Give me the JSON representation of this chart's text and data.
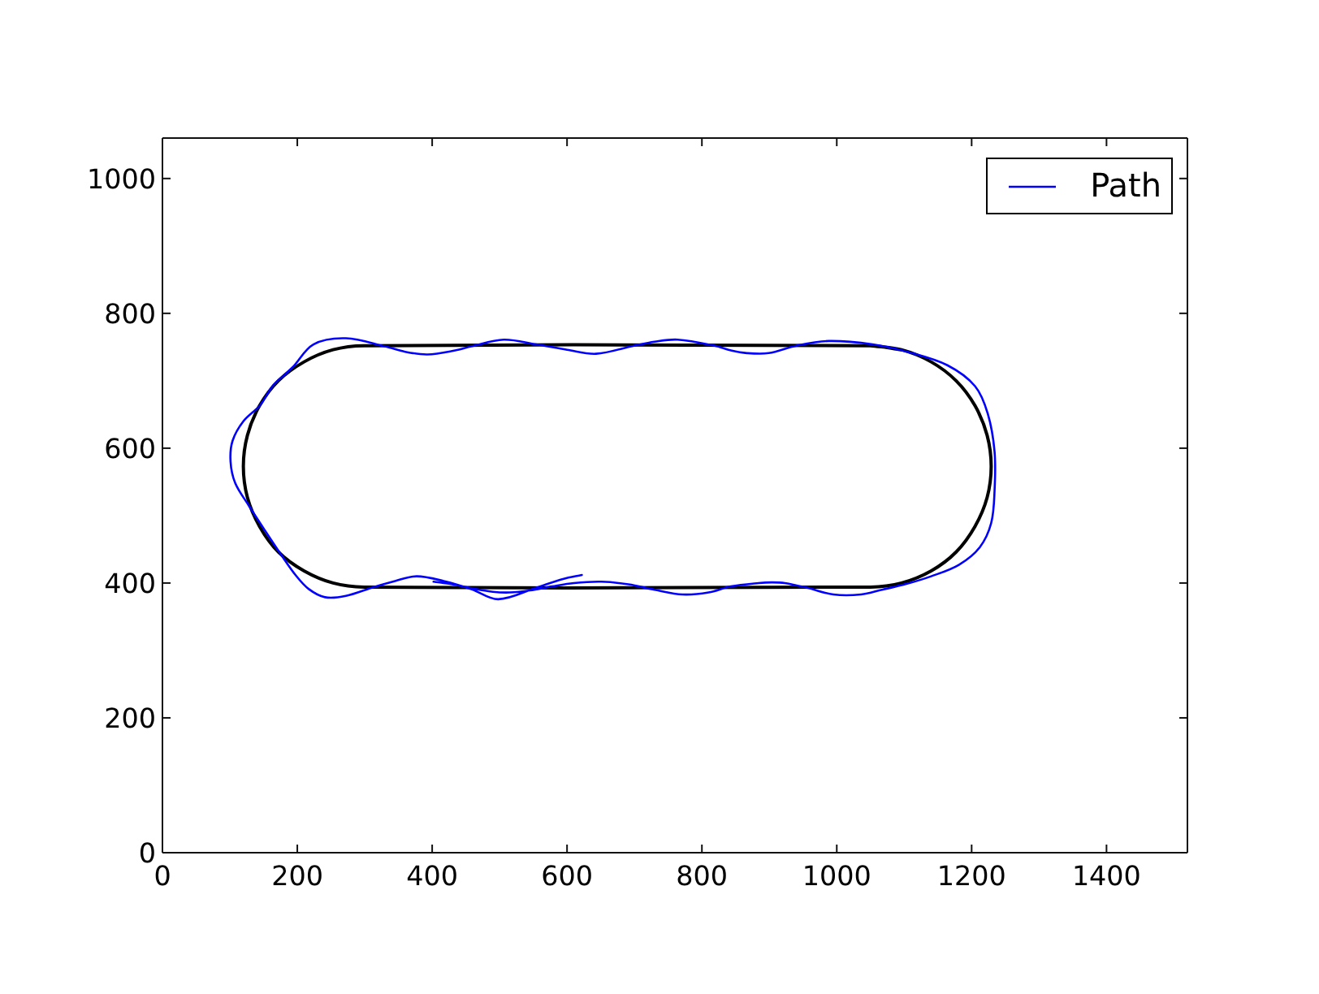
{
  "chart_data": {
    "type": "line",
    "series": [
      {
        "color": "#000000",
        "x": [
          1096,
          1050,
          299,
          253,
          210,
          172,
          144,
          126,
          120,
          126,
          144,
          172,
          210,
          253,
          299,
          1050,
          1096,
          1140,
          1177,
          1205,
          1223,
          1229,
          1223,
          1205,
          1177,
          1140,
          1096,
          1050
        ],
        "values": [
          746,
          752,
          752,
          746,
          728,
          700,
          663,
          619,
          573,
          527,
          484,
          446,
          418,
          400,
          394,
          394,
          400,
          418,
          446,
          484,
          527,
          573,
          619,
          663,
          700,
          728,
          746,
          752
        ]
      },
      {
        "name": "Path",
        "color": "#0000ff",
        "x": [
          402,
          430,
          460,
          490,
          515,
          545,
          578,
          610,
          651,
          691,
          730,
          771,
          810,
          843,
          884,
          904,
          923,
          956,
          995,
          1036,
          1067,
          1101,
          1140,
          1181,
          1212,
          1229,
          1234,
          1234,
          1224,
          1205,
          1164,
          1108,
          1053,
          988,
          940,
          899,
          867,
          843,
          819,
          764,
          730,
          699,
          643,
          600,
          554,
          506,
          458,
          434,
          393,
          360,
          330,
          272,
          224,
          193,
          164,
          145,
          120,
          104,
          101,
          108,
          128,
          152,
          176,
          198,
          217,
          241,
          272,
          313,
          345,
          377,
          417,
          458,
          498,
          554,
          594,
          622
        ],
        "values": [
          402,
          398,
          392,
          387,
          386,
          389,
          395,
          400,
          402,
          398,
          390,
          383,
          386,
          395,
          400,
          401,
          400,
          393,
          383,
          383,
          390,
          398,
          410,
          427,
          453,
          489,
          537,
          595,
          651,
          692,
          723,
          742,
          754,
          759,
          752,
          741,
          741,
          745,
          752,
          761,
          758,
          752,
          740,
          746,
          754,
          761,
          751,
          745,
          739,
          743,
          751,
          763,
          754,
          720,
          693,
          664,
          640,
          611,
          580,
          548,
          515,
          478,
          442,
          411,
          391,
          379,
          381,
          394,
          403,
          410,
          403,
          391,
          376,
          393,
          406,
          412
        ]
      }
    ],
    "xlim": [
      0,
      1520
    ],
    "ylim": [
      0,
      1060
    ],
    "xticks": [
      0,
      200,
      400,
      600,
      800,
      1000,
      1200,
      1400
    ],
    "yticks": [
      0,
      200,
      400,
      600,
      800,
      1000
    ],
    "legend": "top right",
    "line_style": "solid"
  }
}
